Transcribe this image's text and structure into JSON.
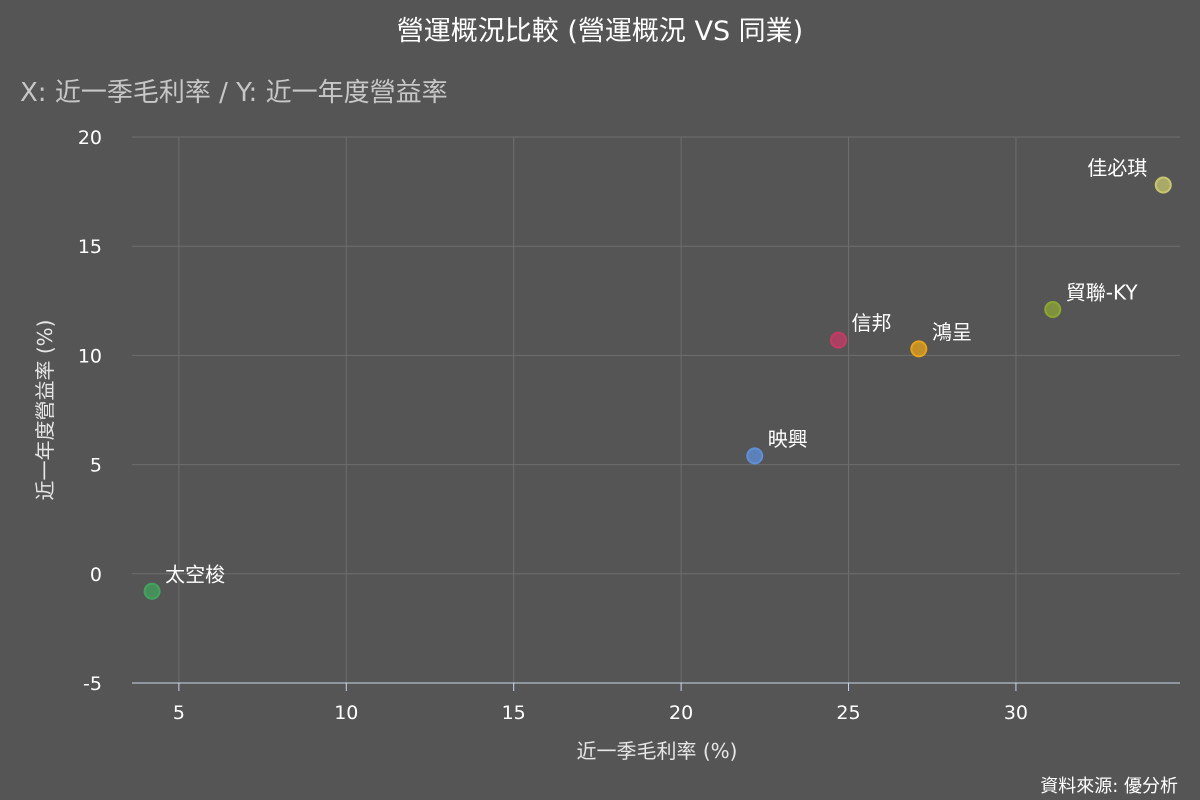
{
  "chart_data": {
    "type": "scatter",
    "title": "營運概況比較 (營運概況 VS 同業)",
    "subtitle": "X: 近一季毛利率 / Y: 近一年度營益率",
    "xlabel": "近一季毛利率 (%)",
    "ylabel": "近一年度營益率 (%)",
    "xlim": [
      3.6,
      34.9
    ],
    "ylim": [
      -5,
      20
    ],
    "xticks": [
      5,
      10,
      15,
      20,
      25,
      30
    ],
    "yticks": [
      -5,
      0,
      5,
      10,
      15,
      20
    ],
    "grid": true,
    "legend": "none",
    "points": [
      {
        "name": "太空梭",
        "x": 4.2,
        "y": -0.8,
        "color": "#43a35c"
      },
      {
        "name": "映興",
        "x": 22.2,
        "y": 5.4,
        "color": "#5f8fd9"
      },
      {
        "name": "信邦",
        "x": 24.7,
        "y": 10.7,
        "color": "#c73a67"
      },
      {
        "name": "鴻呈",
        "x": 27.1,
        "y": 10.3,
        "color": "#e8a317"
      },
      {
        "name": "貿聯-KY",
        "x": 31.1,
        "y": 12.1,
        "color": "#8da534"
      },
      {
        "name": "佳必琪",
        "x": 34.4,
        "y": 17.8,
        "color": "#c8c56f"
      }
    ]
  },
  "source": "資料來源: 優分析",
  "colors": {
    "background": "#555555"
  }
}
